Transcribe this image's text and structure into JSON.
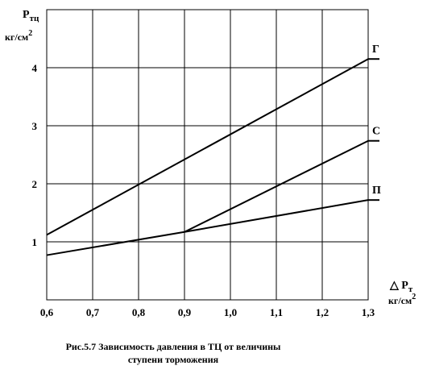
{
  "chart_data": {
    "type": "line",
    "title": [
      "Рис.5.7  Зависимость давления в ТЦ от величины",
      "ступени торможения"
    ],
    "y_label": {
      "main": "P",
      "sub": "тц"
    },
    "y_unit": {
      "main": "кг/см",
      "sup": "2"
    },
    "x_label": {
      "main": "△ P",
      "sub": "т"
    },
    "x_unit": {
      "main": "кг/см",
      "sup": "2"
    },
    "xlim": [
      0.6,
      1.3
    ],
    "xticks": [
      {
        "value": 0.6,
        "label": "0,6"
      },
      {
        "value": 0.7,
        "label": "0,7"
      },
      {
        "value": 0.8,
        "label": "0,8"
      },
      {
        "value": 0.9,
        "label": "0,9"
      },
      {
        "value": 1.0,
        "label": "1,0"
      },
      {
        "value": 1.1,
        "label": "1,1"
      },
      {
        "value": 1.2,
        "label": "1,2"
      },
      {
        "value": 1.3,
        "label": "1,3"
      }
    ],
    "ylim": [
      0,
      5
    ],
    "yticks": [
      1,
      2,
      3,
      4
    ],
    "grid": true,
    "series": [
      {
        "name": "Г",
        "color": "#000000",
        "x": [
          0.6,
          1.3
        ],
        "values": [
          1.12,
          4.15
        ]
      },
      {
        "name": "С",
        "color": "#000000",
        "x": [
          0.9,
          1.3
        ],
        "values": [
          1.17,
          2.74
        ]
      },
      {
        "name": "П",
        "color": "#000000",
        "x": [
          0.6,
          0.9,
          1.3
        ],
        "values": [
          0.77,
          1.17,
          1.72
        ]
      }
    ]
  }
}
